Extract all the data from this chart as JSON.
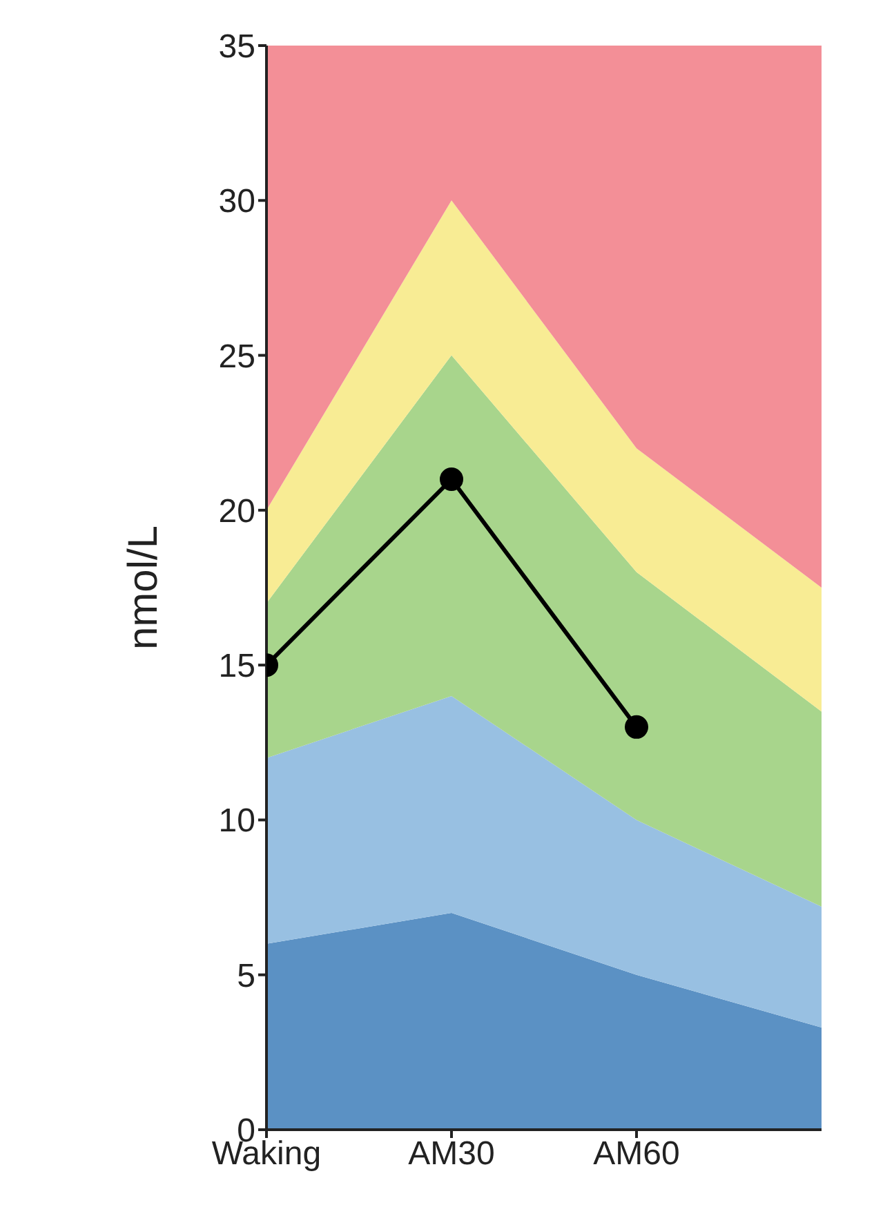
{
  "chart_data": {
    "type": "area",
    "stacked": true,
    "ylabel": "nmol/L",
    "categories": [
      "Waking",
      "AM30",
      "AM60",
      null
    ],
    "ylim": [
      0,
      35
    ],
    "yticks": [
      0,
      5,
      10,
      15,
      20,
      25,
      30,
      35
    ],
    "grid": false,
    "legend": false,
    "line_style": "solid",
    "series": [
      {
        "color": "#5b91c4",
        "values": [
          6,
          7,
          5,
          3.3
        ]
      },
      {
        "color": "#98c0e2",
        "values": [
          6,
          7,
          5,
          3.9
        ]
      },
      {
        "color": "#a8d58c",
        "values": [
          5,
          11,
          8,
          6.3
        ]
      },
      {
        "color": "#f8ec94",
        "values": [
          3,
          5,
          4,
          4
        ]
      },
      {
        "color": "#f38f97",
        "values": [
          15,
          5,
          13,
          17.5
        ]
      },
      {
        "type": "line",
        "marker": "circle",
        "color": "#000000",
        "values": [
          15,
          21,
          13,
          null
        ]
      }
    ]
  }
}
